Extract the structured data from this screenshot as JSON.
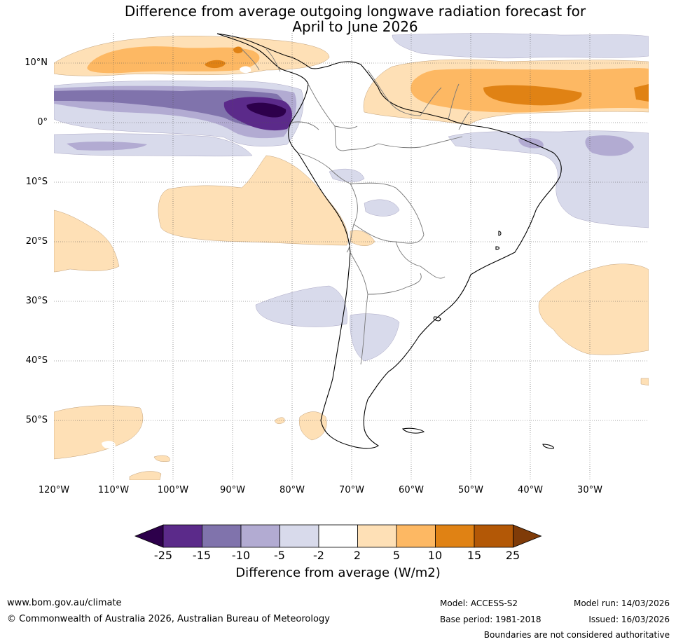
{
  "title_line1": "Difference from average outgoing longwave radiation forecast for",
  "title_line2": "April to June 2026",
  "lat_labels": [
    "10°N",
    "0°",
    "10°S",
    "20°S",
    "30°S",
    "40°S",
    "50°S"
  ],
  "lon_labels": [
    "120°W",
    "110°W",
    "100°W",
    "90°W",
    "80°W",
    "70°W",
    "60°W",
    "50°W",
    "40°W",
    "30°W"
  ],
  "colorbar": {
    "ticks": [
      "-25",
      "-15",
      "-10",
      "-5",
      "-2",
      "2",
      "5",
      "10",
      "15",
      "25"
    ],
    "colors": [
      "#2d004b",
      "#5b2a8a",
      "#8073ac",
      "#b2abd2",
      "#d8daeb",
      "#ffffff",
      "#fee0b6",
      "#fdb863",
      "#e08214",
      "#b35806",
      "#7f3b08"
    ],
    "label": "Difference from average (W/m2)"
  },
  "footer": {
    "url": "www.bom.gov.au/climate",
    "copyright": "© Commonwealth of Australia 2026, Australian Bureau of Meteorology",
    "model": "Model: ACCESS-S2",
    "base_period": "Base period: 1981-2018",
    "model_run": "Model run: 14/03/2026",
    "issued": "Issued: 16/03/2026",
    "disclaimer": "Boundaries are not considered authoritative"
  }
}
